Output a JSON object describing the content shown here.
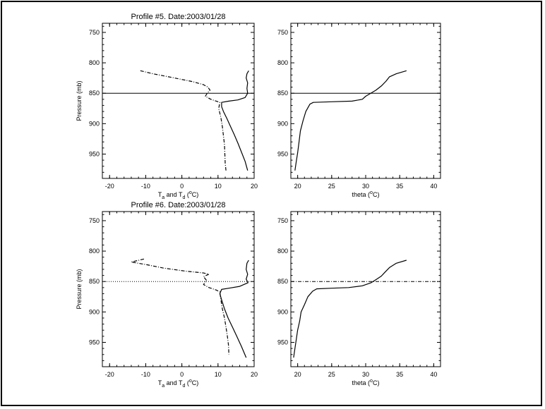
{
  "figure": {
    "background": "#ffffff",
    "ink": "#000000"
  },
  "chart_data": [
    {
      "panel_id": "p5_temp",
      "type": "line",
      "title": "Profile #5.  Date:2003/01/28",
      "xlabel_main": "T",
      "xlabel_sub1": "a",
      "xlabel_mid": " and T",
      "xlabel_sub2": "d",
      "xlabel_pre": " (",
      "xlabel_sup": "o",
      "xlabel_post": "C)",
      "ylabel": "Pressure (mb)",
      "xlim": [
        -22,
        20
      ],
      "ylim": [
        990,
        735
      ],
      "xticks": [
        -20,
        -10,
        0,
        10,
        20
      ],
      "yticks": [
        750,
        800,
        850,
        900,
        950
      ],
      "reference_line": {
        "y": 850,
        "style": "solid"
      },
      "series": [
        {
          "name": "Ta",
          "style": "solid",
          "points": [
            [
              18.5,
              813
            ],
            [
              18.0,
              818
            ],
            [
              17.8,
              825
            ],
            [
              18.2,
              833
            ],
            [
              18.0,
              842
            ],
            [
              18.2,
              850
            ],
            [
              17.5,
              857
            ],
            [
              15.5,
              861
            ],
            [
              13.0,
              863
            ],
            [
              11.0,
              865
            ],
            [
              11.0,
              872
            ],
            [
              11.5,
              880
            ],
            [
              12.5,
              892
            ],
            [
              13.5,
              905
            ],
            [
              14.5,
              918
            ],
            [
              15.5,
              932
            ],
            [
              16.5,
              947
            ],
            [
              17.5,
              962
            ],
            [
              18.2,
              977
            ]
          ]
        },
        {
          "name": "Td",
          "style": "dash-dot",
          "points": [
            [
              -11.5,
              813
            ],
            [
              -8.0,
              818
            ],
            [
              -2.0,
              825
            ],
            [
              3.0,
              831
            ],
            [
              6.0,
              836
            ],
            [
              7.2,
              840
            ],
            [
              7.8,
              845
            ],
            [
              7.0,
              850
            ],
            [
              6.5,
              855
            ],
            [
              8.0,
              860
            ],
            [
              9.5,
              863
            ],
            [
              10.5,
              865
            ],
            [
              10.2,
              875
            ],
            [
              10.8,
              890
            ],
            [
              11.2,
              905
            ],
            [
              11.5,
              920
            ],
            [
              11.8,
              935
            ],
            [
              11.9,
              950
            ],
            [
              12.0,
              965
            ],
            [
              12.2,
              977
            ]
          ]
        }
      ]
    },
    {
      "panel_id": "p5_theta",
      "type": "line",
      "title": "",
      "xlabel_main": "theta (",
      "xlabel_sup": "o",
      "xlabel_post": "C)",
      "ylabel": "",
      "xlim": [
        19,
        41
      ],
      "ylim": [
        990,
        735
      ],
      "xticks": [
        20,
        25,
        30,
        35,
        40
      ],
      "yticks": [
        750,
        800,
        850,
        900,
        950
      ],
      "reference_line": {
        "y": 850,
        "style": "solid"
      },
      "series": [
        {
          "name": "theta",
          "style": "solid",
          "points": [
            [
              36.0,
              813
            ],
            [
              34.5,
              818
            ],
            [
              33.5,
              823
            ],
            [
              33.0,
              830
            ],
            [
              32.3,
              838
            ],
            [
              31.5,
              845
            ],
            [
              30.0,
              855
            ],
            [
              29.5,
              860
            ],
            [
              28.0,
              863
            ],
            [
              25.0,
              864
            ],
            [
              22.3,
              865
            ],
            [
              21.8,
              868
            ],
            [
              21.2,
              880
            ],
            [
              20.8,
              895
            ],
            [
              20.4,
              912
            ],
            [
              20.2,
              930
            ],
            [
              20.0,
              948
            ],
            [
              19.8,
              962
            ],
            [
              19.6,
              977
            ]
          ]
        }
      ]
    },
    {
      "panel_id": "p6_temp",
      "type": "line",
      "title": "Profile #6.  Date:2003/01/28",
      "xlabel_main": "T",
      "xlabel_sub1": "a",
      "xlabel_mid": " and T",
      "xlabel_sub2": "d",
      "xlabel_pre": " (",
      "xlabel_sup": "o",
      "xlabel_post": "C)",
      "ylabel": "Pressure (mb)",
      "xlim": [
        -22,
        20
      ],
      "ylim": [
        990,
        735
      ],
      "xticks": [
        -20,
        -10,
        0,
        10,
        20
      ],
      "yticks": [
        750,
        800,
        850,
        900,
        950
      ],
      "reference_line": {
        "y": 850,
        "style": "dotted"
      },
      "series": [
        {
          "name": "Ta",
          "style": "solid",
          "points": [
            [
              18.5,
              815
            ],
            [
              18.0,
              820
            ],
            [
              17.8,
              830
            ],
            [
              18.2,
              838
            ],
            [
              17.8,
              846
            ],
            [
              18.3,
              852
            ],
            [
              16.0,
              858
            ],
            [
              13.0,
              861
            ],
            [
              11.0,
              863
            ],
            [
              10.5,
              870
            ],
            [
              11.0,
              880
            ],
            [
              11.8,
              895
            ],
            [
              12.8,
              910
            ],
            [
              14.0,
              925
            ],
            [
              15.2,
              940
            ],
            [
              16.5,
              957
            ],
            [
              17.8,
              975
            ]
          ]
        },
        {
          "name": "Td",
          "style": "dash-dot",
          "points": [
            [
              -10.5,
              813
            ],
            [
              -14.0,
              818
            ],
            [
              -10.0,
              822
            ],
            [
              -5.0,
              828
            ],
            [
              1.0,
              833
            ],
            [
              6.0,
              836
            ],
            [
              7.5,
              838
            ],
            [
              6.0,
              842
            ],
            [
              6.8,
              848
            ],
            [
              6.0,
              855
            ],
            [
              7.5,
              860
            ],
            [
              9.5,
              864
            ],
            [
              10.5,
              867
            ],
            [
              10.8,
              880
            ],
            [
              11.2,
              895
            ],
            [
              11.8,
              910
            ],
            [
              12.2,
              925
            ],
            [
              12.6,
              940
            ],
            [
              12.9,
              955
            ],
            [
              13.0,
              970
            ]
          ]
        }
      ]
    },
    {
      "panel_id": "p6_theta",
      "type": "line",
      "title": "",
      "xlabel_main": "theta (",
      "xlabel_sup": "o",
      "xlabel_post": "C)",
      "ylabel": "",
      "xlim": [
        19,
        41
      ],
      "ylim": [
        990,
        735
      ],
      "xticks": [
        20,
        25,
        30,
        35,
        40
      ],
      "yticks": [
        750,
        800,
        850,
        900,
        950
      ],
      "reference_line": {
        "y": 850,
        "style": "dash-dot"
      },
      "series": [
        {
          "name": "theta",
          "style": "solid",
          "points": [
            [
              36.0,
              815
            ],
            [
              34.5,
              820
            ],
            [
              33.5,
              827
            ],
            [
              32.8,
              835
            ],
            [
              32.3,
              841
            ],
            [
              31.5,
              847
            ],
            [
              30.8,
              852
            ],
            [
              29.5,
              857
            ],
            [
              27.5,
              860
            ],
            [
              25.0,
              861
            ],
            [
              22.8,
              862
            ],
            [
              22.2,
              866
            ],
            [
              21.5,
              875
            ],
            [
              21.0,
              888
            ],
            [
              20.5,
              900
            ],
            [
              20.3,
              915
            ],
            [
              20.0,
              930
            ],
            [
              19.8,
              945
            ],
            [
              19.6,
              960
            ],
            [
              19.4,
              975
            ]
          ]
        }
      ]
    }
  ]
}
